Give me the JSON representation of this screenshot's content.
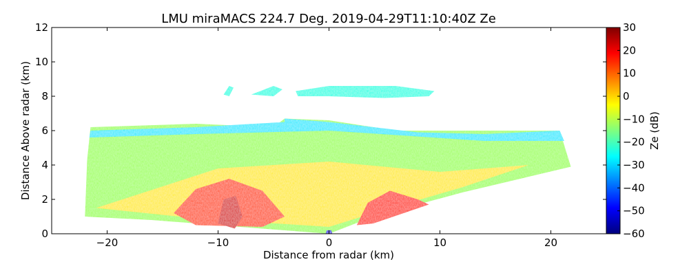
{
  "chart_data": {
    "type": "heatmap",
    "title": "LMU miraMACS 224.7 Deg. 2019-04-29T11:10:40Z  Ze",
    "xlabel": "Distance from radar (km)",
    "ylabel": "Distance Above radar  (km)",
    "xlim": [
      -25,
      25
    ],
    "ylim": [
      0,
      12
    ],
    "x_ticks": [
      -20,
      -10,
      0,
      10,
      20
    ],
    "x_tick_labels": [
      "−20",
      "−10",
      "0",
      "10",
      "20"
    ],
    "y_ticks": [
      0,
      2,
      4,
      6,
      8,
      10,
      12
    ],
    "y_tick_labels": [
      "0",
      "2",
      "4",
      "6",
      "8",
      "10",
      "12"
    ],
    "grid": false,
    "colorbar": {
      "label": "Ze (dB)",
      "range": [
        -60,
        30
      ],
      "colormap": "jet",
      "ticks": [
        30,
        20,
        10,
        0,
        -10,
        -20,
        -30,
        -40,
        -50,
        -60
      ],
      "tick_labels": [
        "30",
        "20",
        "10",
        "0",
        "−10",
        "−20",
        "−30",
        "−40",
        "−50",
        "−60"
      ]
    },
    "colormap_stops": [
      "#00007f",
      "#0000ff",
      "#007fff",
      "#00ffff",
      "#7fff7f",
      "#ffff00",
      "#ff7f00",
      "#ff0000",
      "#7f0000"
    ],
    "echo_regions": [
      {
        "polygon": [
          [
            -22,
            1.0
          ],
          [
            -21.8,
            4.3
          ],
          [
            -21.5,
            6.2
          ],
          [
            -12,
            6.4
          ],
          [
            -5,
            6.2
          ],
          [
            -4,
            6.7
          ],
          [
            0,
            6.6
          ],
          [
            6,
            6.0
          ],
          [
            14,
            6.0
          ],
          [
            20.8,
            6.0
          ],
          [
            21.8,
            3.9
          ],
          [
            12,
            2.4
          ],
          [
            4,
            1.0
          ],
          [
            0,
            0.0
          ],
          [
            -16,
            0.8
          ]
        ],
        "ze_db": -12
      },
      {
        "polygon": [
          [
            -21,
            1.5
          ],
          [
            -10,
            3.8
          ],
          [
            0,
            4.2
          ],
          [
            10,
            3.6
          ],
          [
            18,
            4.0
          ],
          [
            12,
            2.7
          ],
          [
            4,
            1.2
          ],
          [
            0,
            0.4
          ],
          [
            -12,
            0.9
          ]
        ],
        "ze_db": -2
      },
      {
        "polygon": [
          [
            -14,
            1.2
          ],
          [
            -12,
            2.6
          ],
          [
            -9,
            3.2
          ],
          [
            -6,
            2.5
          ],
          [
            -4,
            1.0
          ],
          [
            -6,
            0.4
          ],
          [
            -12,
            0.5
          ]
        ],
        "ze_db": 12
      },
      {
        "polygon": [
          [
            -10,
            0.6
          ],
          [
            -9.5,
            2.0
          ],
          [
            -8.4,
            2.2
          ],
          [
            -7.8,
            1.0
          ],
          [
            -8.5,
            0.3
          ]
        ],
        "ze_db": 22
      },
      {
        "polygon": [
          [
            2.5,
            0.5
          ],
          [
            3.5,
            1.8
          ],
          [
            5.5,
            2.5
          ],
          [
            8,
            2.0
          ],
          [
            9,
            1.7
          ],
          [
            4,
            0.6
          ]
        ],
        "ze_db": 15
      },
      {
        "polygon": [
          [
            -3,
            8.3
          ],
          [
            0,
            8.6
          ],
          [
            6,
            8.6
          ],
          [
            9.5,
            8.3
          ],
          [
            9,
            8.0
          ],
          [
            5,
            7.9
          ],
          [
            0,
            8.0
          ],
          [
            -2.8,
            8.0
          ]
        ],
        "ze_db": -24
      },
      {
        "polygon": [
          [
            -7,
            8.1
          ],
          [
            -5,
            8.6
          ],
          [
            -4.2,
            8.4
          ],
          [
            -5,
            8.0
          ]
        ],
        "ze_db": -24
      },
      {
        "polygon": [
          [
            -9.5,
            8.1
          ],
          [
            -9,
            8.6
          ],
          [
            -8.6,
            8.5
          ],
          [
            -9,
            8.0
          ]
        ],
        "ze_db": -24
      },
      {
        "polygon": [
          [
            -21.5,
            6.0
          ],
          [
            -12,
            6.2
          ],
          [
            -4,
            6.5
          ],
          [
            -4,
            6.7
          ],
          [
            0,
            6.5
          ],
          [
            8,
            5.9
          ],
          [
            14,
            5.8
          ],
          [
            20.8,
            6.0
          ],
          [
            21.2,
            5.4
          ],
          [
            14,
            5.4
          ],
          [
            0,
            6.0
          ],
          [
            -12,
            5.8
          ],
          [
            -21.6,
            5.6
          ]
        ],
        "ze_db": -28
      },
      {
        "polygon": [
          [
            -0.3,
            0.0
          ],
          [
            -0.2,
            0.2
          ],
          [
            0.2,
            0.2
          ],
          [
            0.3,
            0.0
          ]
        ],
        "ze_db": -50
      }
    ]
  }
}
